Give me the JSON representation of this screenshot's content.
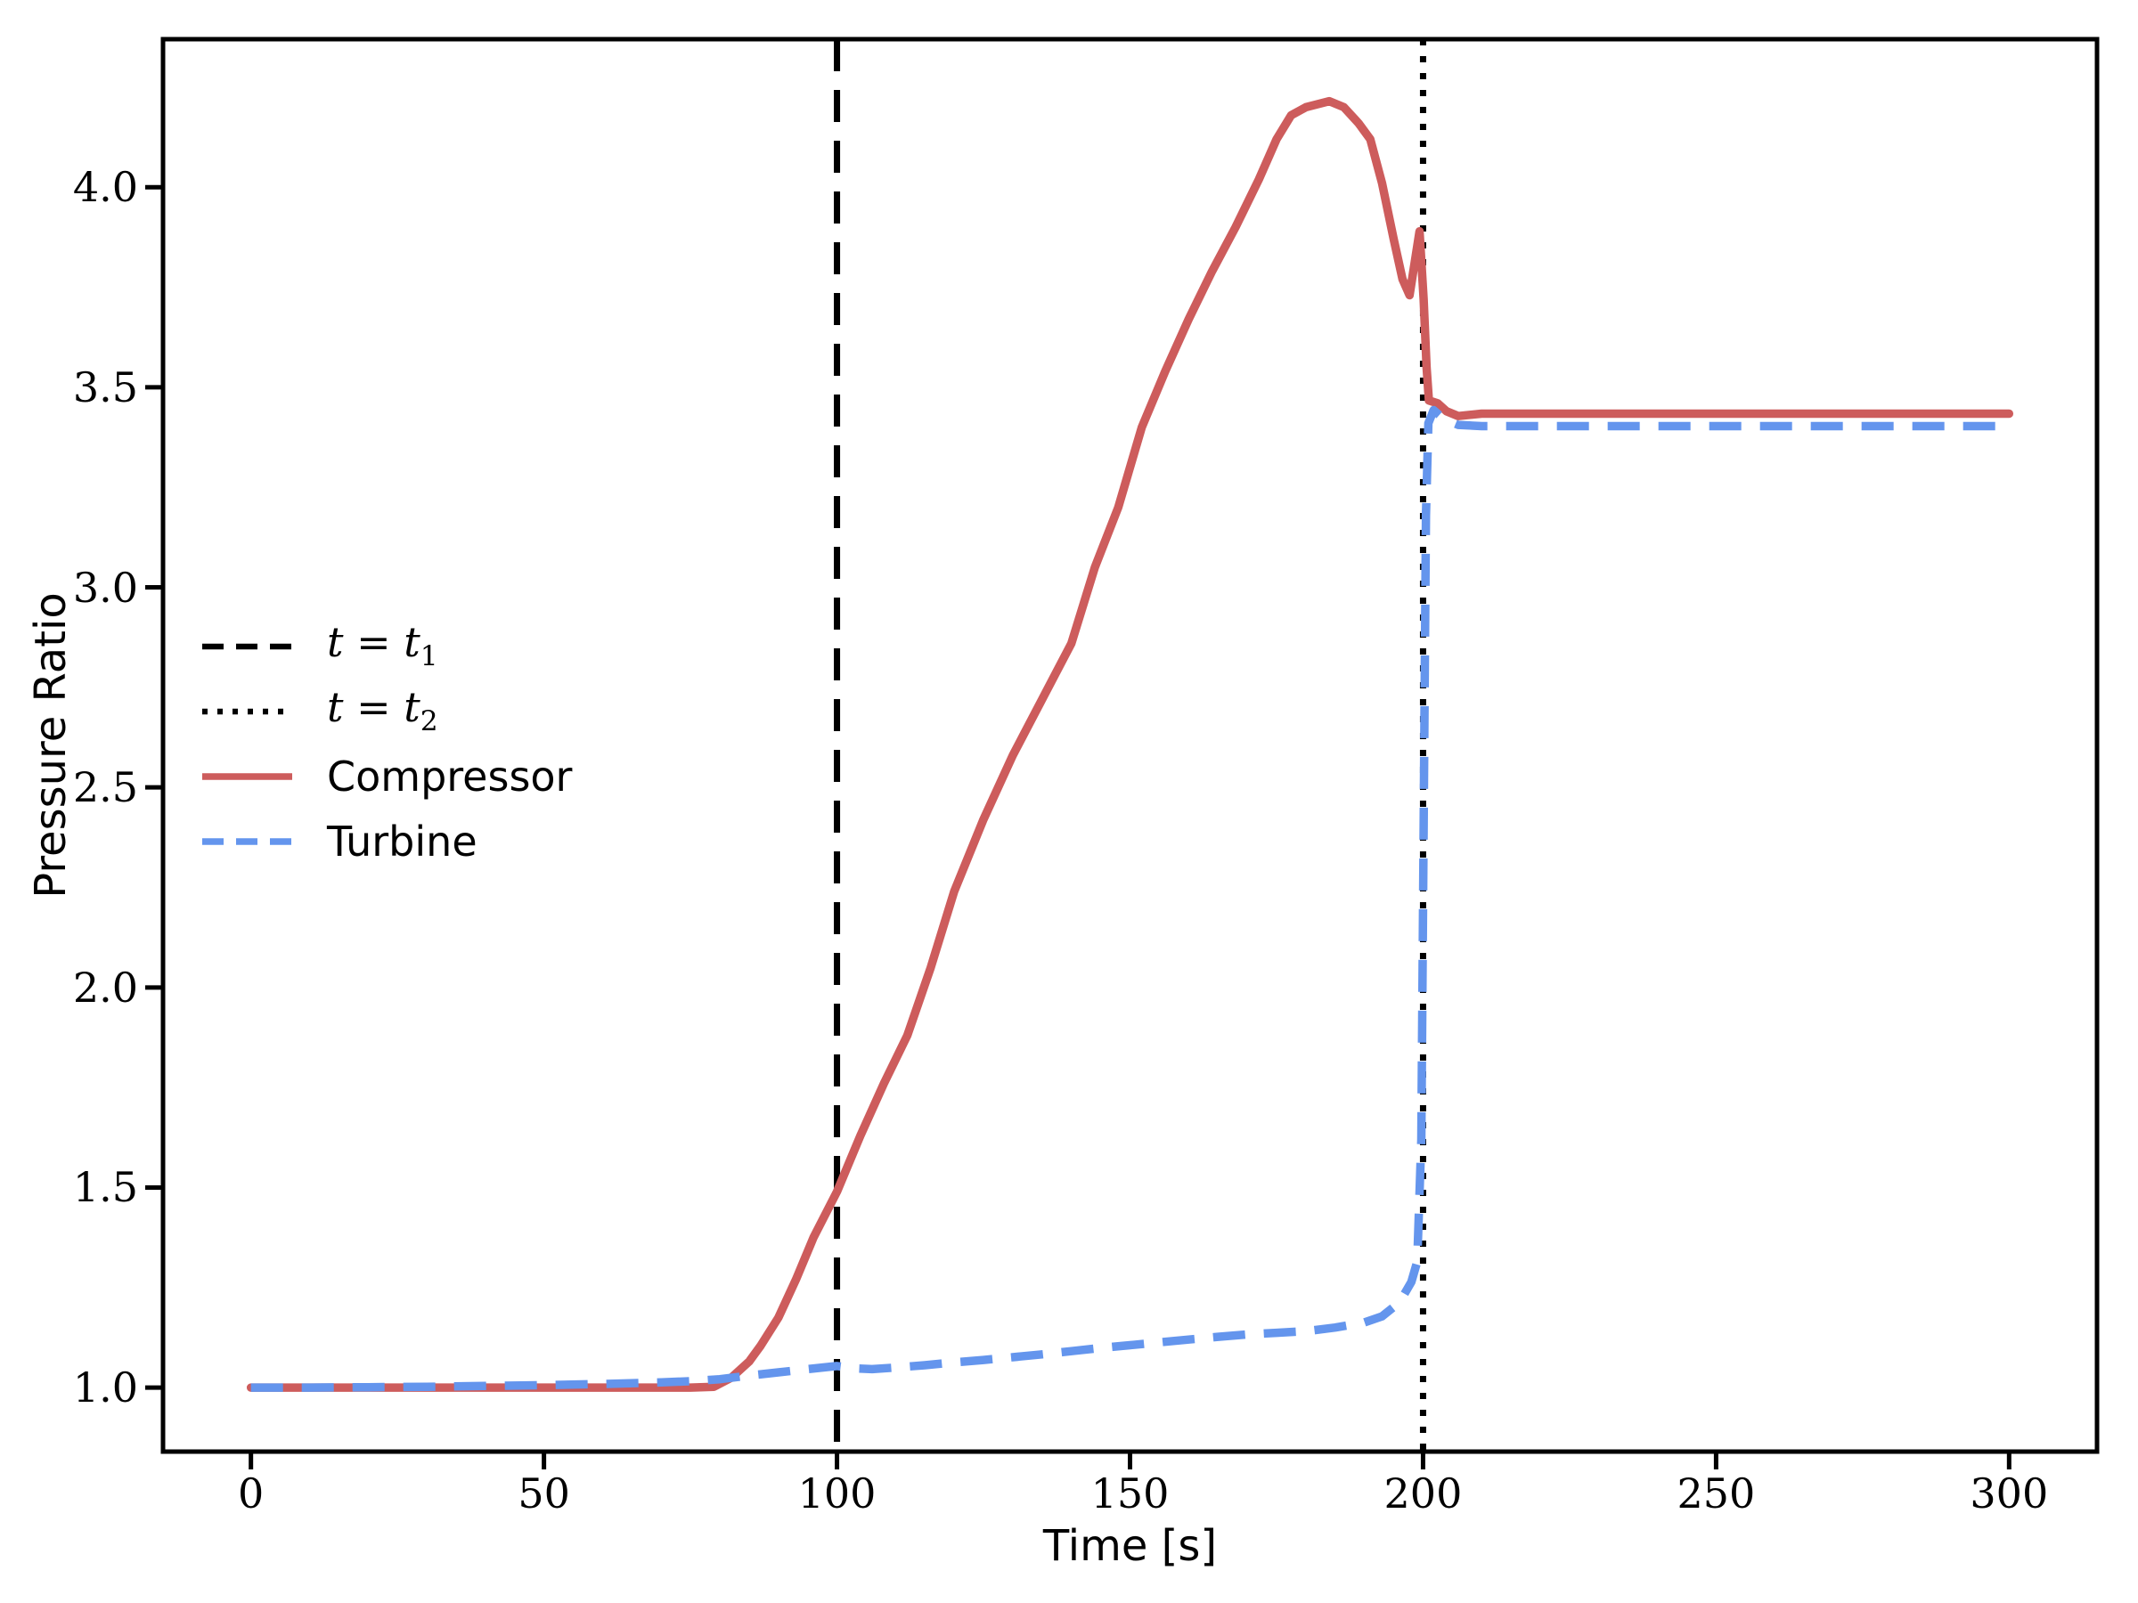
{
  "chart_data": {
    "type": "line",
    "title": "",
    "xlabel": "Time [s]",
    "ylabel": "Pressure Ratio",
    "xlim": [
      -15,
      315
    ],
    "ylim": [
      0.84,
      4.37
    ],
    "grid": false,
    "background": "#ffffff",
    "x_ticks": {
      "values": [
        0,
        50,
        100,
        150,
        200,
        250,
        300
      ],
      "labels": [
        "0",
        "50",
        "100",
        "150",
        "200",
        "250",
        "300"
      ]
    },
    "y_ticks": {
      "values": [
        1.0,
        1.5,
        2.0,
        2.5,
        3.0,
        3.5,
        4.0
      ],
      "labels": [
        "1.0",
        "1.5",
        "2.0",
        "2.5",
        "3.0",
        "3.5",
        "4.0"
      ]
    },
    "colors": {
      "compressor": "#CD5C5C",
      "turbine": "#6495ED",
      "vline": "#000000",
      "axes": "#000000"
    },
    "vlines": [
      {
        "x": 100,
        "style": "dashed",
        "color": "#000000",
        "label": "t = t_1"
      },
      {
        "x": 200,
        "style": "dotted",
        "color": "#000000",
        "label": "t = t_2"
      }
    ],
    "series": [
      {
        "name": "Compressor",
        "style": "solid",
        "color": "#CD5C5C",
        "points": [
          [
            0,
            1.0
          ],
          [
            10,
            1.0
          ],
          [
            20,
            1.0
          ],
          [
            30,
            1.0
          ],
          [
            40,
            1.0
          ],
          [
            50,
            1.0
          ],
          [
            60,
            1.0
          ],
          [
            70,
            1.0
          ],
          [
            75,
            1.0
          ],
          [
            79,
            1.002
          ],
          [
            82,
            1.025
          ],
          [
            85,
            1.065
          ],
          [
            87,
            1.105
          ],
          [
            90,
            1.175
          ],
          [
            93,
            1.27
          ],
          [
            96,
            1.375
          ],
          [
            100,
            1.49
          ],
          [
            104,
            1.63
          ],
          [
            108,
            1.76
          ],
          [
            112,
            1.88
          ],
          [
            116,
            2.05
          ],
          [
            120,
            2.24
          ],
          [
            125,
            2.42
          ],
          [
            130,
            2.58
          ],
          [
            135,
            2.72
          ],
          [
            140,
            2.86
          ],
          [
            144,
            3.05
          ],
          [
            148,
            3.2
          ],
          [
            152,
            3.4
          ],
          [
            156,
            3.54
          ],
          [
            160,
            3.67
          ],
          [
            164,
            3.79
          ],
          [
            168,
            3.9
          ],
          [
            172,
            4.02
          ],
          [
            175,
            4.12
          ],
          [
            177.5,
            4.18
          ],
          [
            180,
            4.2
          ],
          [
            184,
            4.215
          ],
          [
            186.5,
            4.2
          ],
          [
            189,
            4.16
          ],
          [
            191,
            4.12
          ],
          [
            193,
            4.01
          ],
          [
            195,
            3.87
          ],
          [
            196.5,
            3.77
          ],
          [
            197.7,
            3.73
          ],
          [
            199.4,
            3.89
          ],
          [
            200.1,
            3.72
          ],
          [
            200.6,
            3.55
          ],
          [
            201,
            3.467
          ],
          [
            202.5,
            3.46
          ],
          [
            204,
            3.44
          ],
          [
            206,
            3.428
          ],
          [
            210,
            3.434
          ],
          [
            230,
            3.434
          ],
          [
            260,
            3.434
          ],
          [
            300,
            3.434
          ]
        ]
      },
      {
        "name": "Turbine",
        "style": "dashed",
        "color": "#6495ED",
        "points": [
          [
            0,
            1.0
          ],
          [
            10,
            1.0
          ],
          [
            20,
            1.001
          ],
          [
            30,
            1.002
          ],
          [
            40,
            1.004
          ],
          [
            50,
            1.006
          ],
          [
            60,
            1.009
          ],
          [
            70,
            1.013
          ],
          [
            75,
            1.016
          ],
          [
            80,
            1.021
          ],
          [
            85,
            1.03
          ],
          [
            90,
            1.038
          ],
          [
            95,
            1.046
          ],
          [
            100,
            1.054
          ],
          [
            103,
            1.048
          ],
          [
            106,
            1.046
          ],
          [
            110,
            1.05
          ],
          [
            115,
            1.056
          ],
          [
            120,
            1.063
          ],
          [
            125,
            1.069
          ],
          [
            130,
            1.076
          ],
          [
            135,
            1.083
          ],
          [
            140,
            1.091
          ],
          [
            145,
            1.099
          ],
          [
            150,
            1.106
          ],
          [
            155,
            1.113
          ],
          [
            160,
            1.12
          ],
          [
            165,
            1.127
          ],
          [
            170,
            1.133
          ],
          [
            175,
            1.137
          ],
          [
            180,
            1.141
          ],
          [
            185,
            1.15
          ],
          [
            190,
            1.163
          ],
          [
            193,
            1.178
          ],
          [
            196,
            1.213
          ],
          [
            198,
            1.264
          ],
          [
            199,
            1.315
          ],
          [
            199.7,
            1.62
          ],
          [
            200.1,
            2.4
          ],
          [
            200.5,
            3.18
          ],
          [
            200.9,
            3.41
          ],
          [
            201.8,
            3.443
          ],
          [
            203.5,
            3.421
          ],
          [
            206,
            3.406
          ],
          [
            210,
            3.403
          ],
          [
            230,
            3.403
          ],
          [
            260,
            3.403
          ],
          [
            300,
            3.403
          ]
        ]
      }
    ],
    "legend": {
      "position": "center-left",
      "items": [
        {
          "label": "t = t_1",
          "marker": "dashed",
          "color": "#000000",
          "math": true
        },
        {
          "label": "t = t_2",
          "marker": "dotted",
          "color": "#000000",
          "math": true
        },
        {
          "label": "Compressor",
          "marker": "solid",
          "color": "#CD5C5C",
          "math": false
        },
        {
          "label": "Turbine",
          "marker": "dashed",
          "color": "#6495ED",
          "math": false
        }
      ]
    }
  }
}
